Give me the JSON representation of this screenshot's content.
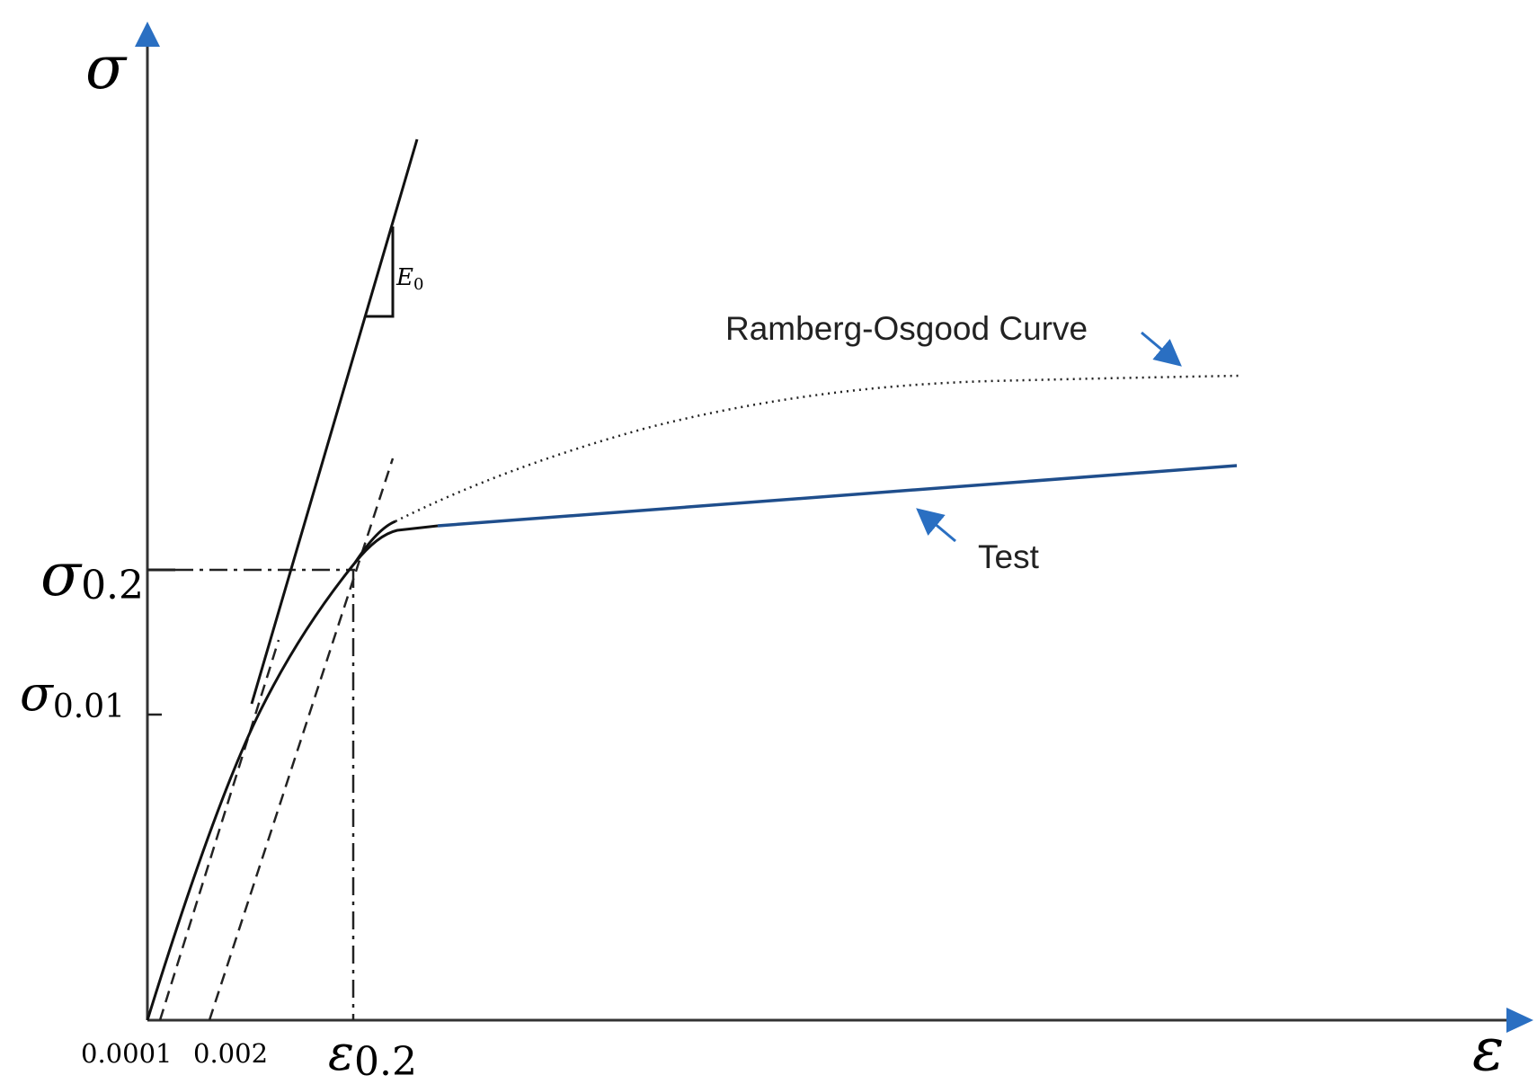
{
  "axes": {
    "y_symbol": "σ",
    "x_symbol": "ε"
  },
  "y_ticks": [
    {
      "symbol": "σ",
      "subscript": "0.2"
    },
    {
      "symbol": "σ",
      "subscript": "0.01"
    }
  ],
  "x_ticks": {
    "tick_a": "0.0001",
    "tick_b": "0.002",
    "epsilon": {
      "symbol": "ε",
      "subscript": "0.2"
    }
  },
  "slope_label": {
    "symbol": "E",
    "subscript": "0"
  },
  "annotations": {
    "ramberg_osgood": "Ramberg-Osgood Curve",
    "test": "Test"
  },
  "colors": {
    "axis": "#333333",
    "curve": "#111111",
    "test_line": "#1f4e8c",
    "arrow": "#2a6fc2"
  },
  "icons": {
    "y_axis_arrow": "arrow-up-icon",
    "x_axis_arrow": "arrow-right-icon"
  }
}
